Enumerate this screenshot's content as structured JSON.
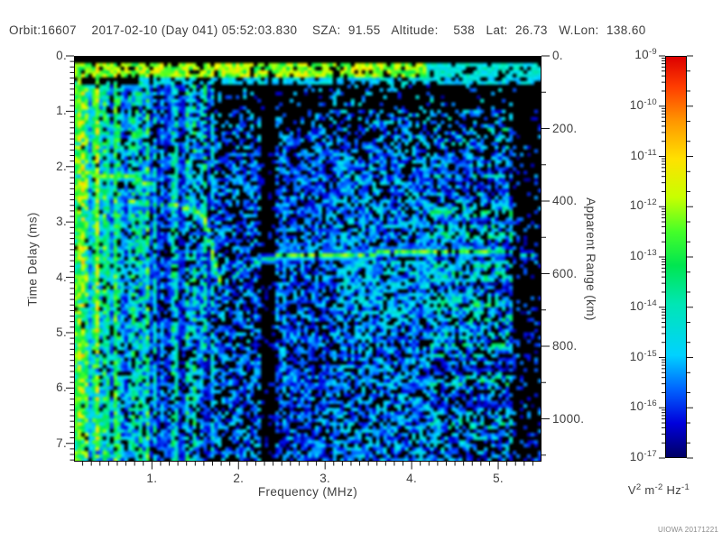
{
  "header": {
    "text": "Orbit:16607    2017-02-10 (Day 041) 05:52:03.830    SZA:  91.55   Altitude:    538   Lat:  26.73   W.Lon:  138.60"
  },
  "observation": {
    "orbit": "16607",
    "date": "2017-02-10",
    "day_of_year": "041",
    "time_utc": "05:52:03.830",
    "sza_deg": 91.55,
    "altitude_km": 538,
    "latitude_deg": 26.73,
    "west_longitude_deg": 138.6
  },
  "plot": {
    "x_axis": {
      "label": "Frequency (MHz)",
      "range": [
        0.1,
        5.5
      ],
      "tick_values": [
        1,
        2,
        3,
        4,
        5
      ],
      "tick_labels": [
        "1.",
        "2.",
        "3.",
        "4.",
        "5."
      ],
      "minor_step": 0.1
    },
    "y_axis": {
      "label": "Time Delay (ms)",
      "range": [
        0,
        7.33
      ],
      "tick_values": [
        0,
        1,
        2,
        3,
        4,
        5,
        6,
        7
      ],
      "tick_labels": [
        "0.",
        "1.",
        "2.",
        "3.",
        "4.",
        "5.",
        "6.",
        "7."
      ],
      "minor_step": 0.1
    },
    "y2_axis": {
      "label": "Apparent Range (km)",
      "range": [
        0,
        1118
      ],
      "tick_values": [
        0,
        200,
        400,
        600,
        800,
        1000
      ],
      "tick_labels": [
        "0.",
        "200.",
        "400.",
        "600.",
        "800.",
        "1000."
      ],
      "minor_step": 100
    }
  },
  "colorbar": {
    "base": "10",
    "exponents": [
      "-9",
      "-10",
      "-11",
      "-12",
      "-13",
      "-14",
      "-15",
      "-16",
      "-17"
    ],
    "unit_parts": [
      [
        "V",
        "2"
      ],
      [
        " m",
        "-2"
      ],
      [
        " Hz",
        "-1"
      ]
    ],
    "stops": [
      [
        1.0,
        "#dc0000"
      ],
      [
        0.93,
        "#ff3c00"
      ],
      [
        0.85,
        "#ff9600"
      ],
      [
        0.76,
        "#ffe100"
      ],
      [
        0.67,
        "#c8ff00"
      ],
      [
        0.59,
        "#46ff28"
      ],
      [
        0.51,
        "#00e650"
      ],
      [
        0.42,
        "#00e6b4"
      ],
      [
        0.3,
        "#00d2ff"
      ],
      [
        0.22,
        "#0064ff"
      ],
      [
        0.14,
        "#0000dc"
      ],
      [
        0.06,
        "#000064"
      ],
      [
        0.0,
        "#000000"
      ]
    ]
  },
  "watermark": {
    "text": "UIOWA 20171221"
  },
  "chart_data": {
    "type": "heatmap",
    "subtype": "radar-sounder-ionogram",
    "xlabel": "Frequency (MHz)",
    "ylabel": "Time Delay (ms)",
    "y2label": "Apparent Range (km)",
    "zlabel": "V^2 m^-2 Hz^-1",
    "x_range_mhz": [
      0.1,
      5.5
    ],
    "y_range_ms": [
      0,
      7.33
    ],
    "y2_range_km": [
      0,
      1118
    ],
    "z_range": [
      1e-17,
      1e-09
    ],
    "z_scale": "log",
    "legend_position": "right-colorbar",
    "grid": false,
    "features": {
      "receiver_band_ms": [
        0.16,
        0.4
      ],
      "ground_echo_delay_ms": 3.55,
      "ground_echo_apparent_range_km": 540,
      "ionospheric_cusp_frequency_mhz": 1.7,
      "dark_column_mhz": [
        2.25,
        2.42
      ],
      "interference_line_frequencies_mhz": [
        0.13,
        0.18,
        0.36,
        0.48,
        0.56,
        0.88,
        1.3,
        1.62,
        2.52
      ]
    },
    "render": {
      "seed": 42,
      "grid_cols": 130,
      "grid_rows": 113,
      "noise_bands_f": [
        {
          "f0": 0.1,
          "f1": 0.35,
          "p": 0.95,
          "i0": 0.28,
          "i1": 0.62
        },
        {
          "f0": 0.35,
          "f1": 1.0,
          "p": 0.85,
          "i0": 0.18,
          "i1": 0.5
        },
        {
          "f0": 1.0,
          "f1": 1.7,
          "p": 0.8,
          "i0": 0.15,
          "i1": 0.45
        },
        {
          "f0": 1.7,
          "f1": 2.25,
          "p": 0.65,
          "i0": 0.1,
          "i1": 0.35
        },
        {
          "f0": 2.25,
          "f1": 2.42,
          "p": 0.12,
          "i0": 0.08,
          "i1": 0.18
        },
        {
          "f0": 2.42,
          "f1": 3.1,
          "p": 0.68,
          "i0": 0.1,
          "i1": 0.32
        },
        {
          "f0": 3.1,
          "f1": 4.2,
          "p": 0.72,
          "i0": 0.12,
          "i1": 0.37
        },
        {
          "f0": 4.2,
          "f1": 5.15,
          "p": 0.7,
          "i0": 0.12,
          "i1": 0.4
        },
        {
          "f0": 5.15,
          "f1": 5.5,
          "p": 0.22,
          "i0": 0.08,
          "i1": 0.28
        }
      ],
      "vertical_lines": [
        {
          "f": 0.13,
          "i": 0.55,
          "t0": 0.5,
          "t1": 7.33,
          "p": 0.75
        },
        {
          "f": 0.18,
          "i": 0.68,
          "t0": 0.14,
          "t1": 7.33,
          "p": 0.9
        },
        {
          "f": 0.36,
          "i": 0.72,
          "t0": 0.14,
          "t1": 7.33,
          "p": 0.92
        },
        {
          "f": 0.48,
          "i": 0.5,
          "t0": 0.5,
          "t1": 7.33,
          "p": 0.7
        },
        {
          "f": 0.56,
          "i": 0.55,
          "t0": 0.5,
          "t1": 7.33,
          "p": 0.8
        },
        {
          "f": 0.88,
          "i": 0.5,
          "t0": 0.5,
          "t1": 7.33,
          "p": 0.6
        },
        {
          "f": 1.3,
          "i": 0.45,
          "t0": 0.8,
          "t1": 7.33,
          "p": 0.55
        },
        {
          "f": 1.62,
          "i": 0.5,
          "t0": 0.5,
          "t1": 5.5,
          "p": 0.55
        },
        {
          "f": 2.52,
          "i": 0.32,
          "t0": 1.2,
          "t1": 7.33,
          "p": 0.5
        }
      ],
      "traces": [
        {
          "pts": [
            [
              0.1,
              2.12
            ],
            [
              0.75,
              2.18
            ],
            [
              1.0,
              2.32
            ]
          ],
          "i": 0.6,
          "p": 0.8,
          "name": "ionospheric-echo-low"
        },
        {
          "pts": [
            [
              0.75,
              2.62
            ],
            [
              1.3,
              2.7
            ],
            [
              1.5,
              2.78
            ],
            [
              1.6,
              2.95
            ],
            [
              1.67,
              3.3
            ],
            [
              1.73,
              3.8
            ],
            [
              1.8,
              4.1
            ]
          ],
          "i": 0.62,
          "p": 0.72,
          "name": "ionospheric-echo-cusp"
        },
        {
          "pts": [
            [
              1.85,
              4.1
            ],
            [
              2.05,
              3.85
            ],
            [
              2.3,
              3.68
            ],
            [
              2.6,
              3.58
            ],
            [
              5.0,
              3.55
            ],
            [
              5.38,
              3.58
            ]
          ],
          "i": 0.62,
          "p": 0.78,
          "fade": [
            2.45,
            4.95
          ],
          "name": "ground-echo"
        }
      ],
      "clouds": [
        {
          "f0": 3.2,
          "f1": 4.9,
          "t0": 3.7,
          "t1": 4.65,
          "p": 0.45,
          "i0": 0.18,
          "i1": 0.42
        },
        {
          "f0": 2.5,
          "f1": 3.2,
          "t0": 3.3,
          "t1": 3.6,
          "p": 0.3,
          "i0": 0.15,
          "i1": 0.3
        },
        {
          "f0": 3.4,
          "f1": 4.6,
          "t0": 2.9,
          "t1": 3.4,
          "p": 0.35,
          "i0": 0.15,
          "i1": 0.33
        }
      ],
      "top_black_ms": 0.14,
      "band_ms": [
        0.16,
        0.4
      ],
      "thin_line_ms": [
        0.42,
        0.54
      ],
      "band_green_fmax": 4.15
    }
  }
}
